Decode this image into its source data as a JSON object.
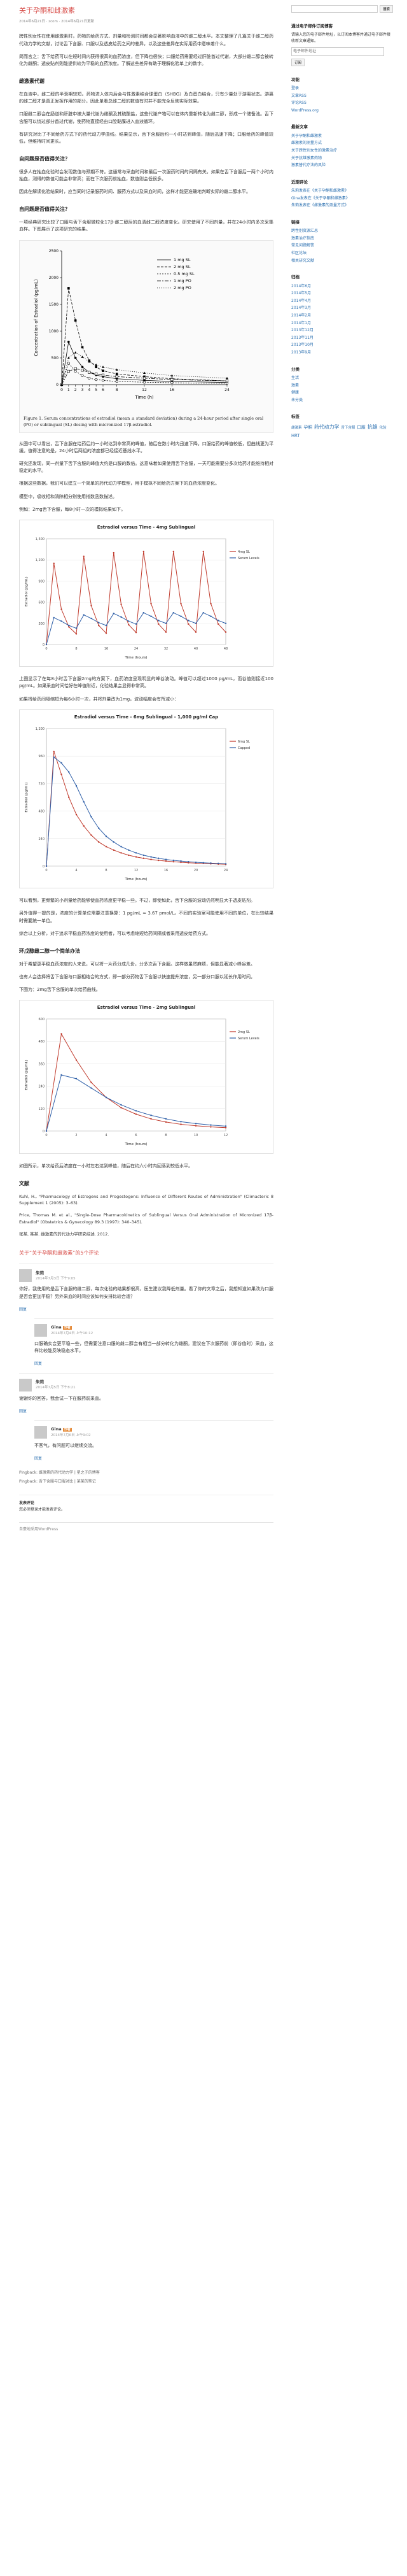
{
  "post": {
    "title": "关于孕酮和雌激素",
    "meta": "2014年6月21日 · zcom · 2014年6月21日更新",
    "intro": [
      "跨性别女性在使用雌激素时，药物的给药方式、剂量和检测时间都会显著影响血液中的雌二醇水平。本文整理了几篇关于雌二醇药代动力学的文献，讨论舌下含服、口服以及透皮给药之间的差异，以及这些差异在实际用药中意味着什么。",
      "简而言之：舌下给药可以在短时间内获得很高的血药浓度，但下降也很快；口服给药需要经过肝脏首过代谢，大部分雌二醇会被转化为雌酮；透皮贴剂则能提供较为平稳的血药浓度。了解这些差异有助于理解化验单上的数字。"
    ],
    "h_sublingual_measure": "雌激素代谢",
    "sublingual_measure_p": [
      "在血液中，雌二醇的半衰期较短。药物进入体内后会与性激素结合球蛋白（SHBG）及白蛋白结合，只有少量处于游离状态。游离的雌二醇才是真正发挥作用的部分，因此单看总雌二醇的数值有时并不能完全反映实际效果。",
      "口服雌二醇会在肠道和肝脏中被大量代谢为雌酮及其硫酸盐，这些代谢产物可以在体内重新转化为雌二醇，形成一个储备池。舌下含服可以绕过部分首过代谢，使药物直接经由口腔黏膜进入血液循环。",
      "有研究对比了不同给药方式下的药代动力学曲线。结果显示，舌下含服后约一小时达到峰值，随后迅速下降；口服给药的峰值较低，但维持时间更长。"
    ],
    "h_q1": "自问题是否值得关注？",
    "q1_p": [
      "很多人在抽血化验时会发现数值与预期不符。这通常与采血时间和最后一次服药时间的间隔有关。如果在舌下含服后一两个小时内抽血，测得的数值可能会非常高；而在下次服药前抽血，数值则会低很多。",
      "因此在解读化验结果时，应当同时记录服药时间、服药方式以及采血时间，这样才能更准确地判断实际的雌二醇水平。"
    ],
    "h_q2": "自问题是否值得关注？",
    "q2_p": [
      "一项经典研究比较了口服与舌下含服微粒化17β-雌二醇后的血清雌二醇浓度变化。研究使用了不同剂量，并在24小时内多次采集血样。下图展示了这项研究的结果。"
    ],
    "figure1_caption": "Figure 1. Serum concentrations of estradiol (mean ± standard deviation) during a 24-hour period after single oral (PO) or sublingual (SL) dosing with micronized 17β-estradiol.",
    "after_fig1_p": [
      "从图中可以看出，舌下含服在给药后约一小时达到非常高的峰值，随后在数小时内迅速下降。口服给药的峰值较低，但曲线更为平缓。值得注意的是，24小时后两组的浓度都已经接近基线水平。",
      "研究还发现，同一剂量下舌下含服的峰值大约是口服的数倍。这意味着如果使用舌下含服，一天可能需要分多次给药才能维持相对稳定的水平。",
      "根据这些数据，我们可以建立一个简单的药代动力学模型，用于模拟不同给药方案下的血药浓度变化。",
      "模型中，吸收相和消除相分别使用指数函数描述。",
      "例如：2mg舌下含服，每8小时一次的模拟结果如下。"
    ],
    "after_chart1_p": [
      "上图显示了在每8小时舌下含服2mg的方案下，血药浓度呈现明显的峰谷波动。峰值可以超过1000 pg/mL，而谷值则接近100 pg/mL。如果采血时间恰好在峰值附近，化验结果会显得非常高。",
      "如果将给药间隔缩短为每6小时一次，并将剂量改为1mg，波动幅度会有所减小："
    ],
    "after_chart2_p": [
      "可以看到，更频繁的小剂量给药能够使血药浓度更平稳一些。不过，即使如此，舌下含服的波动仍然明显大于透皮贴剂。",
      "另外值得一提的是，浓度的计算单位需要注意换算：1 pg/mL ≈ 3.67 pmol/L。不同的实验室可能使用不同的单位，在比较结果时需要统一单位。",
      "综合以上分析，对于追求平稳血药浓度的使用者，可以考虑缩短给药间隔或者采用透皮给药方式。"
    ],
    "h_q3": "环戊醇雌二醇一个简单办法",
    "q3_p": [
      "对于希望更平稳血药浓度的人来说，可以将一片药分成几份，分多次舌下含服。这样做虽然麻烦，但能显著减小峰谷差。",
      "也有人会选择将舌下含服与口服相结合的方式，即一部分药物舌下含服以快速提升浓度，另一部分口服以延长作用时间。",
      "下图为：2mg舌下含服的单次给药曲线。"
    ],
    "after_chart3_p": [
      "如图所示，单次给药后浓度在一小时左右达到峰值，随后在约六小时内回落到较低水平。"
    ],
    "h_refs": "文献",
    "refs": [
      "Kuhl, H., \"Pharmacology of Estrogens and Progestogens: Influence of Different Routes of Administration\" (Climacteric 8 Supplement 1 (2005): 3–63).",
      "Price, Thomas M. et al., \"Single-Dose Pharmacokinetics of Sublingual Versus Oral Administration of Micronized 17β-Estradiol\" (Obstetrics & Gynecology 89.3 (1997): 340–345).",
      "张某, 某某. 雌激素的药代动力学研究综述. 2012."
    ],
    "comments_title": "关于“关于孕酮和雌激素”的5个评论"
  },
  "comments": [
    {
      "author": "朱莉",
      "date": "2014年7月3日 下午9:05",
      "badge": "",
      "text": "你好，我使用的是舌下含服的雌二醇，每次化验的结果都很高，医生建议我降低剂量。看了你的文章之后，我想知道如果改为口服是否会更加平稳？另外采血的时间应该如何安排比较合适？",
      "reply": "回复",
      "is_reply": false
    },
    {
      "author": "Gina",
      "date": "2014年7月4日 上午10:12",
      "badge": "作者",
      "text": "口服确实会更平稳一些，但需要注意口服的雌二醇会有相当一部分转化为雌酮。建议在下次服药前（即谷值时）采血，这样比较能反映稳态水平。",
      "reply": "回复",
      "is_reply": true
    },
    {
      "author": "朱莉",
      "date": "2014年7月5日 下午8:21",
      "badge": "",
      "text": "谢谢你的回答，我会试一下在服药前采血。",
      "reply": "回复",
      "is_reply": false
    },
    {
      "author": "Gina",
      "date": "2014年7月6日 上午9:02",
      "badge": "作者",
      "text": "不客气，有问题可以继续交流。",
      "reply": "回复",
      "is_reply": true
    }
  ],
  "pingbacks": [
    "Pingback: 雌激素的药代动力学 | 星之子的博客",
    "Pingback: 舌下含服与口服对比 | 某某的笔记"
  ],
  "leave_reply": {
    "title": "发表评论",
    "note": "您必须登录才能发表评论。"
  },
  "footer": {
    "text": "自豪地采用WordPress"
  },
  "sidebar": {
    "search_placeholder": "",
    "search_button": "搜索",
    "subscribe_title": "通过电子邮件订阅博客",
    "subscribe_text": "请输入您的电子邮件地址，以订阅本博客并通过电子邮件接收新文章通知。",
    "subscribe_placeholder": "电子邮件地址",
    "subscribe_button": "订阅",
    "meta_title": "功能",
    "meta_items": [
      "登录",
      "文章RSS",
      "评论RSS",
      "WordPress.org"
    ],
    "recent_title": "最新文章",
    "recent_items": [
      "关于孕酮和雌激素",
      "雌激素的测量方式",
      "关于跨性别女性的激素治疗",
      "关于抗雄激素药物",
      "激素替代疗法的风险"
    ],
    "recent_comments_title": "近期评论",
    "recent_comments_items": [
      "朱莉发表在《关于孕酮和雌激素》",
      "Gina发表在《关于孕酮和雌激素》",
      "朱莉发表在《雌激素的测量方式》"
    ],
    "links_title": "链接",
    "links_items": [
      "跨性别资源汇总",
      "激素治疗指南",
      "常见问题解答",
      "社区论坛",
      "相关研究文献"
    ],
    "archive_title": "归档",
    "archive_items": [
      "2014年6月",
      "2014年5月",
      "2014年4月",
      "2014年3月",
      "2014年2月",
      "2014年1月",
      "2013年12月",
      "2013年11月",
      "2013年10月",
      "2013年9月"
    ],
    "categories_title": "分类",
    "categories_items": [
      "生活",
      "激素",
      "健康",
      "未分类"
    ],
    "tags_title": "标签",
    "tags_items": [
      "雌激素",
      "孕酮",
      "药代动力学",
      "舌下含服",
      "口服",
      "抗雄",
      "化验",
      "HRT"
    ]
  },
  "chart_data": [
    {
      "type": "line",
      "title": "Estradiol versus Time - 4mg Sublingual",
      "xlabel": "Time (hours)",
      "ylabel": "Estradiol (pg/mL)",
      "x": [
        0,
        2,
        4,
        6,
        8,
        10,
        12,
        14,
        16,
        18,
        20,
        22,
        24,
        26,
        28,
        30,
        32,
        34,
        36,
        38,
        40,
        42,
        44,
        46,
        48
      ],
      "ylim": [
        0,
        1500
      ],
      "xlim": [
        0,
        48
      ],
      "series": [
        {
          "name": "4mg SL",
          "color": "#c0392b",
          "values": [
            0,
            1150,
            500,
            250,
            150,
            1250,
            550,
            270,
            160,
            1300,
            570,
            280,
            170,
            1320,
            580,
            290,
            175,
            1320,
            580,
            290,
            175,
            1320,
            580,
            290,
            175
          ]
        },
        {
          "name": "Serum Levels",
          "color": "#2e5fa8",
          "values": [
            0,
            380,
            330,
            270,
            230,
            420,
            370,
            310,
            270,
            440,
            390,
            330,
            290,
            450,
            400,
            340,
            300,
            450,
            400,
            340,
            300,
            450,
            400,
            340,
            300
          ]
        }
      ],
      "legend": "right"
    },
    {
      "type": "line",
      "title": "Estradiol versus Time - 6mg Sublingual - 1,000 pg/ml Cap",
      "xlabel": "Time (hours)",
      "ylabel": "Estradiol (pg/mL)",
      "x": [
        0,
        1,
        2,
        3,
        4,
        5,
        6,
        7,
        8,
        9,
        10,
        11,
        12,
        13,
        14,
        15,
        16,
        17,
        18,
        19,
        20,
        21,
        22,
        23,
        24
      ],
      "ylim": [
        0,
        1200
      ],
      "xlim": [
        0,
        24
      ],
      "series": [
        {
          "name": "6mg SL",
          "color": "#c0392b",
          "values": [
            0,
            1000,
            800,
            600,
            450,
            350,
            270,
            210,
            170,
            140,
            115,
            95,
            80,
            68,
            58,
            50,
            44,
            38,
            33,
            29,
            26,
            23,
            20,
            18,
            16
          ]
        },
        {
          "name": "Capped",
          "color": "#2e5fa8",
          "values": [
            0,
            950,
            900,
            820,
            700,
            560,
            430,
            330,
            260,
            210,
            170,
            140,
            115,
            95,
            80,
            68,
            58,
            50,
            44,
            38,
            33,
            29,
            26,
            23,
            20
          ]
        }
      ],
      "legend": "right"
    },
    {
      "type": "line",
      "title": "Estradiol versus Time - 2mg Sublingual",
      "xlabel": "Time (hours)",
      "ylabel": "Estradiol (pg/mL)",
      "x": [
        0,
        1,
        2,
        3,
        4,
        5,
        6,
        7,
        8,
        9,
        10,
        11,
        12
      ],
      "ylim": [
        0,
        600
      ],
      "xlim": [
        0,
        12
      ],
      "series": [
        {
          "name": "2mg SL",
          "color": "#c0392b",
          "values": [
            0,
            520,
            380,
            260,
            180,
            125,
            90,
            65,
            48,
            36,
            28,
            22,
            18
          ]
        },
        {
          "name": "Serum Levels",
          "color": "#2e5fa8",
          "values": [
            0,
            300,
            280,
            230,
            180,
            140,
            108,
            84,
            65,
            50,
            40,
            32,
            26
          ]
        }
      ],
      "legend": "right"
    }
  ],
  "figure1": {
    "ylabel": "Concentration of Estradiol (pg/mL)",
    "xlabel": "Time (h)",
    "legend": [
      "1 mg SL",
      "2 mg SL",
      "0.5 mg SL",
      "1 mg PO",
      "2 mg PO"
    ],
    "ylim": [
      0,
      2500
    ],
    "xlim": [
      0,
      24
    ],
    "x": [
      0,
      1,
      2,
      3,
      4,
      5,
      6,
      8,
      12,
      16,
      24
    ],
    "series": [
      [
        0,
        800,
        500,
        330,
        230,
        180,
        150,
        110,
        80,
        60,
        40
      ],
      [
        0,
        1800,
        1200,
        700,
        450,
        330,
        260,
        200,
        150,
        110,
        70
      ],
      [
        0,
        400,
        250,
        170,
        120,
        95,
        80,
        60,
        45,
        35,
        25
      ],
      [
        0,
        250,
        300,
        270,
        230,
        200,
        180,
        150,
        120,
        95,
        70
      ],
      [
        0,
        500,
        600,
        520,
        430,
        370,
        330,
        280,
        220,
        170,
        120
      ]
    ]
  }
}
